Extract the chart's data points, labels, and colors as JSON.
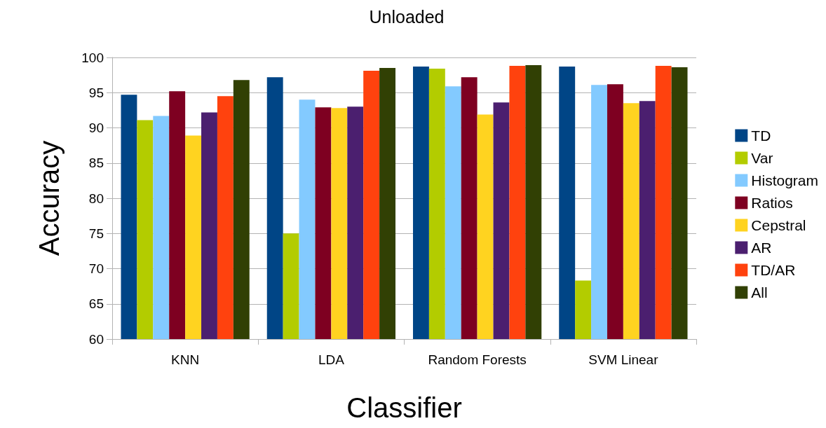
{
  "chart_data": {
    "type": "bar",
    "title": "Unloaded",
    "xlabel": "Classifier",
    "ylabel": "Accuracy",
    "categories": [
      "KNN",
      "LDA",
      "Random Forests",
      "SVM Linear"
    ],
    "series": [
      {
        "name": "TD",
        "color": "#004586",
        "values": [
          94.7,
          97.2,
          98.7,
          98.7
        ]
      },
      {
        "name": "Var",
        "color": "#b3cc00",
        "values": [
          91.1,
          75.0,
          98.4,
          68.3
        ]
      },
      {
        "name": "Histogram",
        "color": "#83caff",
        "values": [
          91.7,
          94.0,
          95.9,
          96.1
        ]
      },
      {
        "name": "Ratios",
        "color": "#7e0021",
        "values": [
          95.2,
          92.9,
          97.2,
          96.2
        ]
      },
      {
        "name": "Cepstral",
        "color": "#ffd320",
        "values": [
          88.9,
          92.8,
          91.9,
          93.5
        ]
      },
      {
        "name": "AR",
        "color": "#4b1f6f",
        "values": [
          92.2,
          93.0,
          93.6,
          93.8
        ]
      },
      {
        "name": "TD/AR",
        "color": "#ff420e",
        "values": [
          94.5,
          98.1,
          98.8,
          98.8
        ]
      },
      {
        "name": "All",
        "color": "#314004",
        "values": [
          96.8,
          98.5,
          98.9,
          98.6
        ]
      }
    ],
    "ylim": [
      60,
      100
    ],
    "yticks": [
      60,
      65,
      70,
      75,
      80,
      85,
      90,
      95,
      100
    ],
    "grid": "y",
    "legend": "right"
  }
}
